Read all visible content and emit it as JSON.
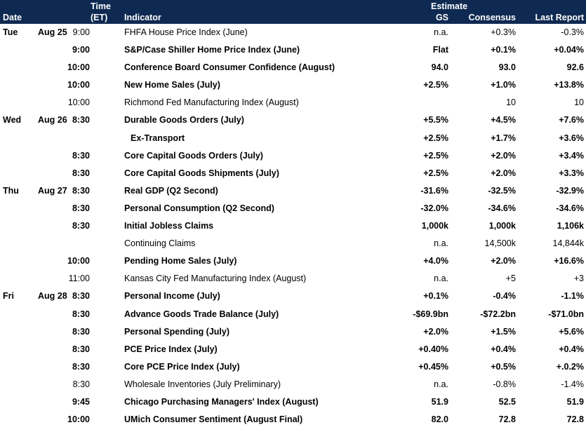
{
  "header": {
    "date": "Date",
    "time_line1": "Time",
    "time_line2": "(ET)",
    "indicator": "Indicator",
    "estimate": "Estimate",
    "gs": "GS",
    "consensus": "Consensus",
    "last_report": "Last Report"
  },
  "rows": [
    {
      "day": "Tue",
      "date": "Aug 25",
      "time": "9:00",
      "indicator": "FHFA House Price Index (June)",
      "gs": "n.a.",
      "consensus": "+0.3%",
      "last": "-0.3%",
      "bold": false
    },
    {
      "day": "",
      "date": "",
      "time": "9:00",
      "indicator": "S&P/Case Shiller Home Price Index (June)",
      "gs": "Flat",
      "consensus": "+0.1%",
      "last": "+0.04%",
      "bold": true
    },
    {
      "day": "",
      "date": "",
      "time": "10:00",
      "indicator": "Conference Board Consumer Confidence (August)",
      "gs": "94.0",
      "consensus": "93.0",
      "last": "92.6",
      "bold": true
    },
    {
      "day": "",
      "date": "",
      "time": "10:00",
      "indicator": "New Home Sales (July)",
      "gs": "+2.5%",
      "consensus": "+1.0%",
      "last": "+13.8%",
      "bold": true
    },
    {
      "day": "",
      "date": "",
      "time": "10:00",
      "indicator": "Richmond Fed Manufacturing Index (August)",
      "gs": "",
      "consensus": "10",
      "last": "10",
      "bold": false
    },
    {
      "day": "Wed",
      "date": "Aug 26",
      "time": "8:30",
      "indicator": "Durable Goods Orders (July)",
      "gs": "+5.5%",
      "consensus": "+4.5%",
      "last": "+7.6%",
      "bold": true
    },
    {
      "day": "",
      "date": "",
      "time": "",
      "indicator": "Ex-Transport",
      "gs": "+2.5%",
      "consensus": "+1.7%",
      "last": "+3.6%",
      "bold": true,
      "indent": true
    },
    {
      "day": "",
      "date": "",
      "time": "8:30",
      "indicator": "Core Capital Goods Orders (July)",
      "gs": "+2.5%",
      "consensus": "+2.0%",
      "last": "+3.4%",
      "bold": true
    },
    {
      "day": "",
      "date": "",
      "time": "8:30",
      "indicator": "Core Capital Goods Shipments (July)",
      "gs": "+2.5%",
      "consensus": "+2.0%",
      "last": "+3.3%",
      "bold": true
    },
    {
      "day": "Thu",
      "date": "Aug 27",
      "time": "8:30",
      "indicator": "Real GDP (Q2 Second)",
      "gs": "-31.6%",
      "consensus": "-32.5%",
      "last": "-32.9%",
      "bold": true
    },
    {
      "day": "",
      "date": "",
      "time": "8:30",
      "indicator": "Personal Consumption (Q2 Second)",
      "gs": "-32.0%",
      "consensus": "-34.6%",
      "last": "-34.6%",
      "bold": true
    },
    {
      "day": "",
      "date": "",
      "time": "8:30",
      "indicator": "Initial Jobless Claims",
      "gs": "1,000k",
      "consensus": "1,000k",
      "last": "1,106k",
      "bold": true
    },
    {
      "day": "",
      "date": "",
      "time": "",
      "indicator": "Continuing Claims",
      "gs": "n.a.",
      "consensus": "14,500k",
      "last": "14,844k",
      "bold": false
    },
    {
      "day": "",
      "date": "",
      "time": "10:00",
      "indicator": "Pending Home Sales (July)",
      "gs": "+4.0%",
      "consensus": "+2.0%",
      "last": "+16.6%",
      "bold": true
    },
    {
      "day": "",
      "date": "",
      "time": "11:00",
      "indicator": "Kansas City Fed Manufacturing Index (August)",
      "gs": "n.a.",
      "consensus": "+5",
      "last": "+3",
      "bold": false
    },
    {
      "day": "Fri",
      "date": "Aug 28",
      "time": "8:30",
      "indicator": "Personal Income (July)",
      "gs": "+0.1%",
      "consensus": "-0.4%",
      "last": "-1.1%",
      "bold": true
    },
    {
      "day": "",
      "date": "",
      "time": "8:30",
      "indicator": "Advance Goods Trade Balance (July)",
      "gs": "-$69.9bn",
      "consensus": "-$72.2bn",
      "last": "-$71.0bn",
      "bold": true
    },
    {
      "day": "",
      "date": "",
      "time": "8:30",
      "indicator": "Personal Spending (July)",
      "gs": "+2.0%",
      "consensus": "+1.5%",
      "last": "+5.6%",
      "bold": true
    },
    {
      "day": "",
      "date": "",
      "time": "8:30",
      "indicator": "PCE Price Index (July)",
      "gs": "+0.40%",
      "consensus": "+0.4%",
      "last": "+0.4%",
      "bold": true
    },
    {
      "day": "",
      "date": "",
      "time": "8:30",
      "indicator": "Core PCE Price Index (July)",
      "gs": "+0.45%",
      "consensus": "+0.5%",
      "last": "+.0.2%",
      "bold": true
    },
    {
      "day": "",
      "date": "",
      "time": "8:30",
      "indicator": "Wholesale Inventories (July Preliminary)",
      "gs": "n.a.",
      "consensus": "-0.8%",
      "last": "-1.4%",
      "bold": false
    },
    {
      "day": "",
      "date": "",
      "time": "9:45",
      "indicator": "Chicago Purchasing Managers' Index (August)",
      "gs": "51.9",
      "consensus": "52.5",
      "last": "51.9",
      "bold": true
    },
    {
      "day": "",
      "date": "",
      "time": "10:00",
      "indicator": "UMich Consumer Sentiment (August Final)",
      "gs": "82.0",
      "consensus": "72.8",
      "last": "72.8",
      "bold": true
    }
  ]
}
